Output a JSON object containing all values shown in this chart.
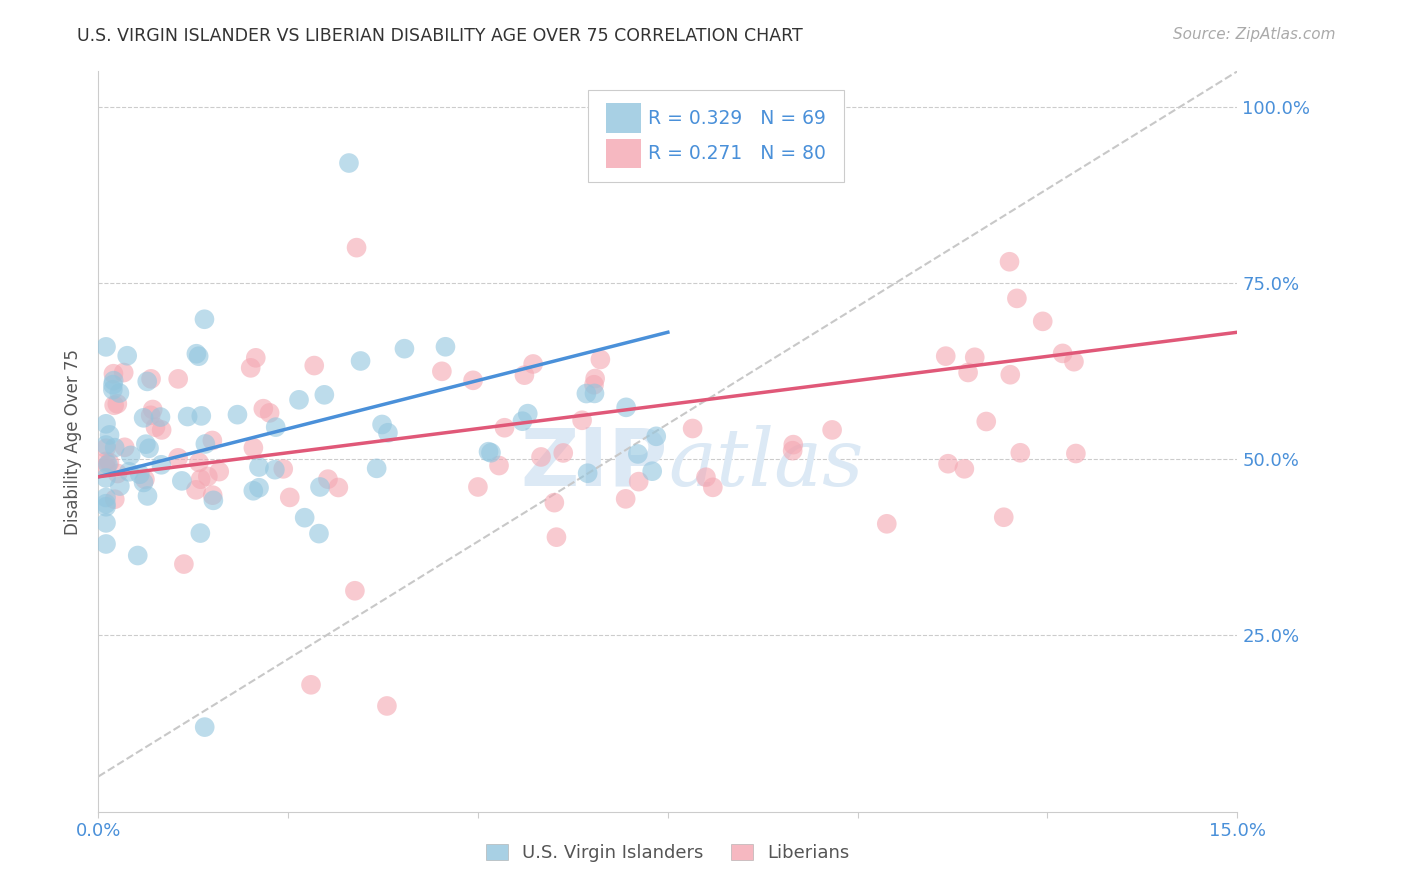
{
  "title": "U.S. VIRGIN ISLANDER VS LIBERIAN DISABILITY AGE OVER 75 CORRELATION CHART",
  "source": "Source: ZipAtlas.com",
  "ylabel": "Disability Age Over 75",
  "ytick_labels": [
    "100.0%",
    "75.0%",
    "50.0%",
    "25.0%"
  ],
  "ytick_values": [
    1.0,
    0.75,
    0.5,
    0.25
  ],
  "xmin": 0.0,
  "xmax": 0.15,
  "ymin": 0.0,
  "ymax": 1.05,
  "R_blue": 0.329,
  "N_blue": 69,
  "R_pink": 0.271,
  "N_pink": 80,
  "color_blue": "#92c5de",
  "color_pink": "#f4a7b2",
  "color_title": "#333333",
  "color_source": "#aaaaaa",
  "color_legend_blue": "#4a90d9",
  "color_axis_label": "#4a90d9",
  "watermark_color": "#dce9f5",
  "line_blue": "#4a90d9",
  "line_pink": "#e05878",
  "line_diagonal": "#c8c8c8",
  "legend_label_blue": "U.S. Virgin Islanders",
  "legend_label_pink": "Liberians"
}
